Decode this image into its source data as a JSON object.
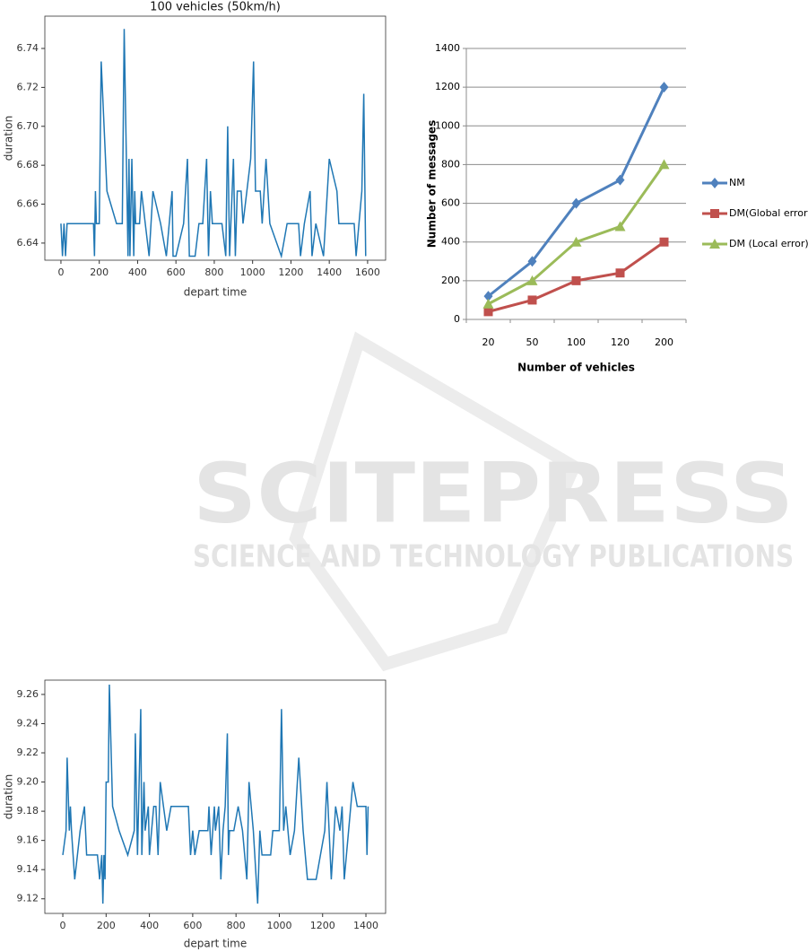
{
  "watermark": {
    "title": "SCITEPRESS",
    "subtitle": "SCIENCE AND TECHNOLOGY PUBLICATIONS"
  },
  "chart_data": [
    {
      "type": "line",
      "title": "100 vehicles (50km/h)",
      "x_label": "depart time",
      "y_label": "duration",
      "color": "#1f77b4",
      "x": [
        0,
        8,
        16,
        24,
        32,
        40,
        170,
        175,
        180,
        185,
        200,
        210,
        240,
        290,
        320,
        330,
        350,
        355,
        360,
        370,
        380,
        385,
        390,
        410,
        420,
        440,
        460,
        480,
        520,
        550,
        580,
        585,
        600,
        640,
        660,
        670,
        700,
        720,
        740,
        760,
        770,
        780,
        790,
        840,
        860,
        870,
        880,
        900,
        910,
        920,
        940,
        950,
        990,
        1005,
        1015,
        1040,
        1050,
        1070,
        1090,
        1150,
        1180,
        1240,
        1250,
        1270,
        1300,
        1310,
        1330,
        1370,
        1400,
        1440,
        1450,
        1530,
        1540,
        1570,
        1580,
        1590
      ],
      "values": [
        6.65,
        6.6333,
        6.65,
        6.6333,
        6.65,
        6.65,
        6.65,
        6.6333,
        6.6667,
        6.65,
        6.65,
        6.7333,
        6.6667,
        6.65,
        6.65,
        6.75,
        6.6333,
        6.6833,
        6.6333,
        6.6833,
        6.6333,
        6.6667,
        6.65,
        6.65,
        6.6667,
        6.65,
        6.6333,
        6.6667,
        6.65,
        6.6333,
        6.6667,
        6.6333,
        6.6333,
        6.65,
        6.6833,
        6.6333,
        6.6333,
        6.65,
        6.65,
        6.6833,
        6.6333,
        6.6667,
        6.65,
        6.65,
        6.6333,
        6.7,
        6.6333,
        6.6833,
        6.6333,
        6.6667,
        6.6667,
        6.65,
        6.6833,
        6.7333,
        6.6667,
        6.6667,
        6.65,
        6.6833,
        6.65,
        6.6333,
        6.65,
        6.65,
        6.6333,
        6.65,
        6.6667,
        6.6333,
        6.65,
        6.6333,
        6.6833,
        6.6667,
        6.65,
        6.65,
        6.6333,
        6.6667,
        6.7167,
        6.6333
      ],
      "xlim": [
        -84,
        1694
      ],
      "ylim": [
        6.6312,
        6.7566
      ],
      "xticks": [
        0,
        200,
        400,
        600,
        800,
        1000,
        1200,
        1400,
        1600
      ],
      "yticks": [
        6.64,
        6.66,
        6.68,
        {
          "value": 6.7,
          "label": "6.70"
        },
        6.72,
        6.74
      ]
    },
    {
      "type": "line",
      "x_label": "Number of vehicles",
      "y_label": "Number of messages",
      "categories": [
        "20",
        "50",
        "100",
        "120",
        "200"
      ],
      "series": [
        {
          "name": "NM",
          "color": "#4f81bd",
          "marker": "diamond",
          "values": [
            120,
            300,
            600,
            720,
            1200
          ]
        },
        {
          "name": "DM(Global error)",
          "color": "#c0504d",
          "marker": "square",
          "values": [
            40,
            100,
            200,
            240,
            400
          ]
        },
        {
          "name": "DM (Local error)",
          "color": "#9bbb59",
          "marker": "triangle",
          "values": [
            80,
            200,
            400,
            480,
            800
          ]
        }
      ],
      "ylim": [
        0,
        1400
      ],
      "yticks": [
        0,
        200,
        400,
        600,
        800,
        1000,
        1200,
        1400
      ],
      "grid": true,
      "legend": "right"
    },
    {
      "type": "line",
      "x_label": "depart time",
      "y_label": "duration",
      "color": "#1f77b4",
      "x": [
        0,
        15,
        20,
        30,
        35,
        40,
        55,
        80,
        100,
        110,
        160,
        170,
        180,
        185,
        190,
        195,
        200,
        210,
        215,
        230,
        260,
        300,
        330,
        335,
        345,
        355,
        360,
        365,
        375,
        380,
        395,
        400,
        410,
        420,
        430,
        440,
        450,
        465,
        480,
        500,
        580,
        590,
        600,
        610,
        630,
        670,
        675,
        685,
        700,
        705,
        720,
        730,
        740,
        750,
        760,
        765,
        770,
        790,
        810,
        830,
        850,
        860,
        880,
        900,
        910,
        920,
        960,
        970,
        1000,
        1010,
        1020,
        1030,
        1050,
        1070,
        1090,
        1110,
        1120,
        1130,
        1170,
        1190,
        1210,
        1220,
        1240,
        1260,
        1280,
        1290,
        1300,
        1320,
        1340,
        1360,
        1400,
        1405,
        1410
      ],
      "values": [
        9.15,
        9.1667,
        9.2167,
        9.1667,
        9.1833,
        9.1667,
        9.1333,
        9.1667,
        9.1833,
        9.15,
        9.15,
        9.1333,
        9.15,
        9.1167,
        9.15,
        9.1333,
        9.2,
        9.2,
        9.2667,
        9.1833,
        9.1667,
        9.15,
        9.1667,
        9.2333,
        9.15,
        9.2167,
        9.25,
        9.15,
        9.2,
        9.1667,
        9.1833,
        9.15,
        9.1667,
        9.1833,
        9.1833,
        9.15,
        9.2,
        9.1833,
        9.1667,
        9.1833,
        9.1833,
        9.15,
        9.1667,
        9.15,
        9.1667,
        9.1667,
        9.1833,
        9.15,
        9.1833,
        9.1667,
        9.1833,
        9.1333,
        9.1667,
        9.1833,
        9.2333,
        9.15,
        9.1667,
        9.1667,
        9.1833,
        9.1667,
        9.1333,
        9.2,
        9.1667,
        9.1167,
        9.1667,
        9.15,
        9.15,
        9.1667,
        9.1667,
        9.25,
        9.1667,
        9.1833,
        9.15,
        9.1667,
        9.2167,
        9.1667,
        9.15,
        9.1333,
        9.1333,
        9.15,
        9.1667,
        9.2,
        9.1333,
        9.1833,
        9.1667,
        9.1833,
        9.1333,
        9.1667,
        9.2,
        9.1833,
        9.1833,
        9.15,
        9.1833
      ],
      "xlim": [
        -83,
        1491
      ],
      "ylim": [
        9.11,
        9.2698
      ],
      "xticks": [
        0,
        200,
        400,
        600,
        800,
        1000,
        1200,
        1400
      ],
      "yticks": [
        9.12,
        9.14,
        9.16,
        9.18,
        {
          "value": 9.2,
          "label": "9.20"
        },
        9.22,
        9.24,
        9.26
      ]
    }
  ]
}
